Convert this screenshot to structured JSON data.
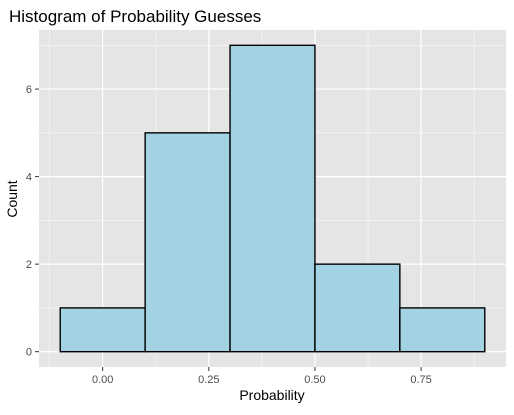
{
  "chart_data": {
    "type": "bar",
    "title": "Histogram of Probability Guesses",
    "xlabel": "Probability",
    "ylabel": "Count",
    "bins": [
      {
        "x0": -0.1,
        "x1": 0.1,
        "count": 1
      },
      {
        "x0": 0.1,
        "x1": 0.3,
        "count": 5
      },
      {
        "x0": 0.3,
        "x1": 0.5,
        "count": 7
      },
      {
        "x0": 0.5,
        "x1": 0.7,
        "count": 2
      },
      {
        "x0": 0.7,
        "x1": 0.9,
        "count": 1
      }
    ],
    "xlim": [
      -0.15,
      0.95
    ],
    "ylim": [
      -0.35,
      7.35
    ],
    "x_ticks": [
      0.0,
      0.25,
      0.5,
      0.75
    ],
    "x_tick_labels": [
      "0.00",
      "0.25",
      "0.50",
      "0.75"
    ],
    "y_ticks": [
      0,
      2,
      4,
      6
    ],
    "y_tick_labels": [
      "0",
      "2",
      "4",
      "6"
    ],
    "grid": true,
    "colors": {
      "panel_background": "#e5e5e5",
      "grid_major": "#ffffff",
      "bar_fill": "#a3d3e3",
      "bar_stroke": "#000000",
      "tick_text": "#4d4d4d",
      "title_text": "#000000"
    }
  }
}
